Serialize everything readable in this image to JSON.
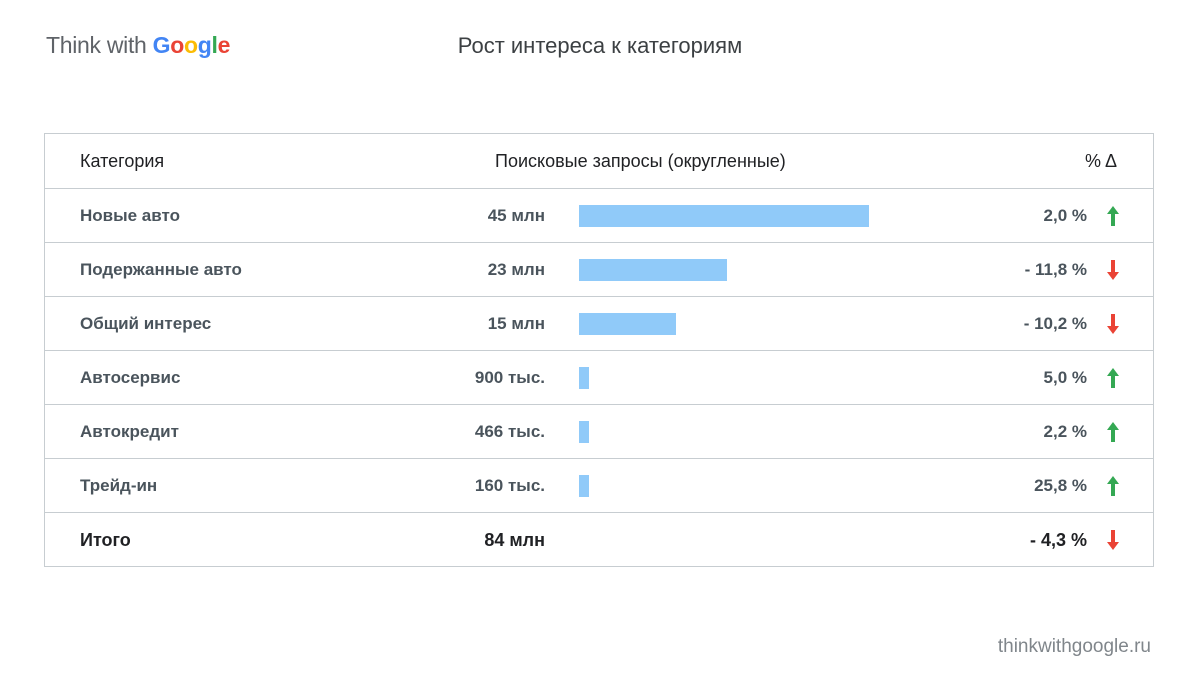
{
  "logo": {
    "think": "Think with ",
    "google": [
      "G",
      "o",
      "o",
      "g",
      "l",
      "e"
    ],
    "google_colors": [
      "#4285F4",
      "#EA4335",
      "#FBBC05",
      "#4285F4",
      "#34A853",
      "#EA4335"
    ]
  },
  "title": "Рост интереса к категориям",
  "header": {
    "category": "Категория",
    "searches": "Поисковые запросы (округленные)",
    "delta": "% Δ"
  },
  "colors": {
    "bar": "#90caf9",
    "up": "#34A853",
    "down": "#EA4335"
  },
  "chart_data": {
    "type": "table",
    "rows": [
      {
        "category": "Новые авто",
        "searches_label": "45 млн",
        "searches": 45000000,
        "change": "2,0 %",
        "direction": "up"
      },
      {
        "category": "Подержанные авто",
        "searches_label": "23 млн",
        "searches": 23000000,
        "change": "- 11,8 %",
        "direction": "down"
      },
      {
        "category": "Общий интерес",
        "searches_label": "15 млн",
        "searches": 15000000,
        "change": "- 10,2 %",
        "direction": "down"
      },
      {
        "category": "Автосервис",
        "searches_label": "900 тыс.",
        "searches": 900000,
        "change": "5,0 %",
        "direction": "up"
      },
      {
        "category": "Автокредит",
        "searches_label": "466 тыс.",
        "searches": 466000,
        "change": "2,2 %",
        "direction": "up"
      },
      {
        "category": "Трейд-ин",
        "searches_label": "160 тыс.",
        "searches": 160000,
        "change": "25,8 %",
        "direction": "up"
      }
    ],
    "total": {
      "category": "Итого",
      "searches_label": "84 млн",
      "change": "- 4,3 %",
      "direction": "down"
    }
  },
  "footer": "thinkwithgoogle.ru"
}
